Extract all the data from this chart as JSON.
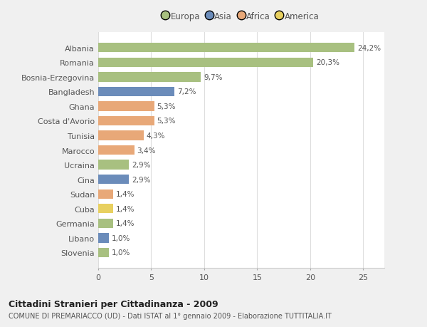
{
  "countries": [
    "Albania",
    "Romania",
    "Bosnia-Erzegovina",
    "Bangladesh",
    "Ghana",
    "Costa d'Avorio",
    "Tunisia",
    "Marocco",
    "Ucraina",
    "Cina",
    "Sudan",
    "Cuba",
    "Germania",
    "Libano",
    "Slovenia"
  ],
  "values": [
    24.2,
    20.3,
    9.7,
    7.2,
    5.3,
    5.3,
    4.3,
    3.4,
    2.9,
    2.9,
    1.4,
    1.4,
    1.4,
    1.0,
    1.0
  ],
  "labels": [
    "24,2%",
    "20,3%",
    "9,7%",
    "7,2%",
    "5,3%",
    "5,3%",
    "4,3%",
    "3,4%",
    "2,9%",
    "2,9%",
    "1,4%",
    "1,4%",
    "1,4%",
    "1,0%",
    "1,0%"
  ],
  "continents": [
    "Europa",
    "Europa",
    "Europa",
    "Asia",
    "Africa",
    "Africa",
    "Africa",
    "Africa",
    "Europa",
    "Asia",
    "Africa",
    "America",
    "Europa",
    "Asia",
    "Europa"
  ],
  "colors": {
    "Europa": "#a8c080",
    "Asia": "#6b8cba",
    "Africa": "#e8a878",
    "America": "#e8d060"
  },
  "legend_order": [
    "Europa",
    "Asia",
    "Africa",
    "America"
  ],
  "title": "Cittadini Stranieri per Cittadinanza - 2009",
  "subtitle": "COMUNE DI PREMARIACCO (UD) - Dati ISTAT al 1° gennaio 2009 - Elaborazione TUTTITALIA.IT",
  "xlim": [
    0,
    27
  ],
  "background_color": "#f0f0f0",
  "plot_bg_color": "#ffffff"
}
